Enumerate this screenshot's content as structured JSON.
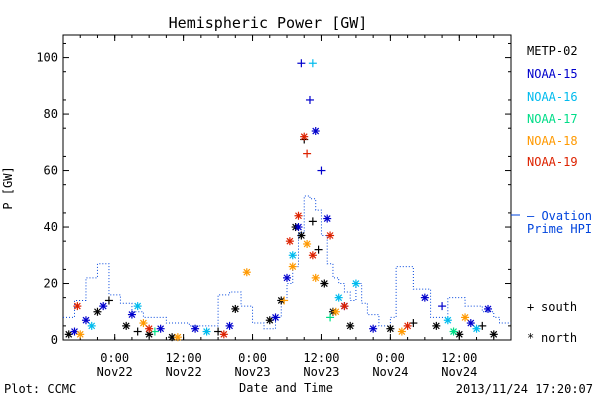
{
  "chart_data": {
    "type": "scatter",
    "title": "Hemispheric Power [GW]",
    "xlabel": "Date and Time",
    "ylabel": "P [GW]",
    "xlim": [
      "2013-11-21 15:00",
      "2013-11-24 21:00"
    ],
    "ylim": [
      0,
      108
    ],
    "y_ticks": [
      0,
      20,
      40,
      60,
      80,
      100
    ],
    "x_ticks": [
      {
        "x": "2013-11-22 00:00",
        "time": "0:00",
        "date": "Nov22"
      },
      {
        "x": "2013-11-22 12:00",
        "time": "12:00",
        "date": "Nov22"
      },
      {
        "x": "2013-11-23 00:00",
        "time": "0:00",
        "date": "Nov23"
      },
      {
        "x": "2013-11-23 12:00",
        "time": "12:00",
        "date": "Nov23"
      },
      {
        "x": "2013-11-24 00:00",
        "time": "0:00",
        "date": "Nov24"
      },
      {
        "x": "2013-11-24 12:00",
        "time": "12:00",
        "date": "Nov24"
      }
    ],
    "markers": {
      "south": "+",
      "north": "*"
    },
    "marker_legend": [
      {
        "symbol": "+",
        "label": "south"
      },
      {
        "symbol": "*",
        "label": "north"
      }
    ],
    "series": [
      {
        "name": "METP-02",
        "color": "#000000",
        "points": [
          {
            "x": "2013-11-21 16:00",
            "y": 2,
            "h": "north"
          },
          {
            "x": "2013-11-21 21:00",
            "y": 10,
            "h": "north"
          },
          {
            "x": "2013-11-21 23:00",
            "y": 14,
            "h": "south"
          },
          {
            "x": "2013-11-22 02:00",
            "y": 5,
            "h": "north"
          },
          {
            "x": "2013-11-22 04:00",
            "y": 3,
            "h": "south"
          },
          {
            "x": "2013-11-22 06:00",
            "y": 2,
            "h": "north"
          },
          {
            "x": "2013-11-22 10:00",
            "y": 1,
            "h": "north"
          },
          {
            "x": "2013-11-22 18:00",
            "y": 3,
            "h": "south"
          },
          {
            "x": "2013-11-22 21:00",
            "y": 11,
            "h": "north"
          },
          {
            "x": "2013-11-23 03:00",
            "y": 7,
            "h": "north"
          },
          {
            "x": "2013-11-23 05:00",
            "y": 14,
            "h": "north"
          },
          {
            "x": "2013-11-23 07:30",
            "y": 40,
            "h": "north"
          },
          {
            "x": "2013-11-23 08:30",
            "y": 37,
            "h": "north"
          },
          {
            "x": "2013-11-23 09:00",
            "y": 71,
            "h": "south"
          },
          {
            "x": "2013-11-23 10:30",
            "y": 42,
            "h": "south"
          },
          {
            "x": "2013-11-23 11:30",
            "y": 32,
            "h": "south"
          },
          {
            "x": "2013-11-23 12:30",
            "y": 20,
            "h": "north"
          },
          {
            "x": "2013-11-23 14:00",
            "y": 10,
            "h": "north"
          },
          {
            "x": "2013-11-23 17:00",
            "y": 5,
            "h": "north"
          },
          {
            "x": "2013-11-24 00:00",
            "y": 4,
            "h": "north"
          },
          {
            "x": "2013-11-24 04:00",
            "y": 6,
            "h": "south"
          },
          {
            "x": "2013-11-24 08:00",
            "y": 5,
            "h": "north"
          },
          {
            "x": "2013-11-24 12:00",
            "y": 2,
            "h": "north"
          },
          {
            "x": "2013-11-24 16:00",
            "y": 5,
            "h": "south"
          },
          {
            "x": "2013-11-24 18:00",
            "y": 2,
            "h": "north"
          }
        ]
      },
      {
        "name": "NOAA-15",
        "color": "#0000cc",
        "points": [
          {
            "x": "2013-11-21 17:00",
            "y": 3,
            "h": "north"
          },
          {
            "x": "2013-11-21 19:00",
            "y": 7,
            "h": "north"
          },
          {
            "x": "2013-11-21 22:00",
            "y": 12,
            "h": "north"
          },
          {
            "x": "2013-11-22 03:00",
            "y": 9,
            "h": "north"
          },
          {
            "x": "2013-11-22 08:00",
            "y": 4,
            "h": "north"
          },
          {
            "x": "2013-11-22 14:00",
            "y": 4,
            "h": "north"
          },
          {
            "x": "2013-11-22 20:00",
            "y": 5,
            "h": "north"
          },
          {
            "x": "2013-11-23 04:00",
            "y": 8,
            "h": "north"
          },
          {
            "x": "2013-11-23 06:00",
            "y": 22,
            "h": "north"
          },
          {
            "x": "2013-11-23 08:00",
            "y": 40,
            "h": "north"
          },
          {
            "x": "2013-11-23 08:30",
            "y": 98,
            "h": "south"
          },
          {
            "x": "2013-11-23 10:00",
            "y": 85,
            "h": "south"
          },
          {
            "x": "2013-11-23 11:00",
            "y": 74,
            "h": "north"
          },
          {
            "x": "2013-11-23 12:00",
            "y": 60,
            "h": "south"
          },
          {
            "x": "2013-11-23 13:00",
            "y": 43,
            "h": "north"
          },
          {
            "x": "2013-11-23 16:00",
            "y": 12,
            "h": "north"
          },
          {
            "x": "2013-11-23 21:00",
            "y": 4,
            "h": "north"
          },
          {
            "x": "2013-11-24 06:00",
            "y": 15,
            "h": "north"
          },
          {
            "x": "2013-11-24 09:00",
            "y": 12,
            "h": "south"
          },
          {
            "x": "2013-11-24 14:00",
            "y": 6,
            "h": "north"
          },
          {
            "x": "2013-11-24 17:00",
            "y": 11,
            "h": "north"
          }
        ]
      },
      {
        "name": "NOAA-16",
        "color": "#00bbee",
        "points": [
          {
            "x": "2013-11-21 20:00",
            "y": 5,
            "h": "north"
          },
          {
            "x": "2013-11-22 04:00",
            "y": 12,
            "h": "north"
          },
          {
            "x": "2013-11-22 16:00",
            "y": 3,
            "h": "north"
          },
          {
            "x": "2013-11-23 07:00",
            "y": 30,
            "h": "north"
          },
          {
            "x": "2013-11-23 10:30",
            "y": 98,
            "h": "south"
          },
          {
            "x": "2013-11-23 15:00",
            "y": 15,
            "h": "north"
          },
          {
            "x": "2013-11-23 18:00",
            "y": 20,
            "h": "north"
          },
          {
            "x": "2013-11-24 10:00",
            "y": 7,
            "h": "north"
          },
          {
            "x": "2013-11-24 15:00",
            "y": 4,
            "h": "north"
          }
        ]
      },
      {
        "name": "NOAA-17",
        "color": "#00dd88",
        "points": [
          {
            "x": "2013-11-22 07:00",
            "y": 3,
            "h": "south"
          },
          {
            "x": "2013-11-23 13:30",
            "y": 8,
            "h": "south"
          },
          {
            "x": "2013-11-24 11:00",
            "y": 3,
            "h": "north"
          }
        ]
      },
      {
        "name": "NOAA-18",
        "color": "#ff9900",
        "points": [
          {
            "x": "2013-11-21 18:00",
            "y": 2,
            "h": "north"
          },
          {
            "x": "2013-11-22 05:00",
            "y": 6,
            "h": "north"
          },
          {
            "x": "2013-11-22 11:00",
            "y": 1,
            "h": "north"
          },
          {
            "x": "2013-11-22 23:00",
            "y": 24,
            "h": "north"
          },
          {
            "x": "2013-11-23 05:30",
            "y": 14,
            "h": "south"
          },
          {
            "x": "2013-11-23 07:00",
            "y": 26,
            "h": "north"
          },
          {
            "x": "2013-11-23 09:30",
            "y": 34,
            "h": "north"
          },
          {
            "x": "2013-11-23 11:00",
            "y": 22,
            "h": "north"
          },
          {
            "x": "2013-11-23 14:30",
            "y": 10,
            "h": "north"
          },
          {
            "x": "2013-11-24 02:00",
            "y": 3,
            "h": "north"
          },
          {
            "x": "2013-11-24 13:00",
            "y": 8,
            "h": "north"
          }
        ]
      },
      {
        "name": "NOAA-19",
        "color": "#dd2200",
        "points": [
          {
            "x": "2013-11-21 17:30",
            "y": 12,
            "h": "north"
          },
          {
            "x": "2013-11-22 06:00",
            "y": 4,
            "h": "north"
          },
          {
            "x": "2013-11-22 19:00",
            "y": 2,
            "h": "north"
          },
          {
            "x": "2013-11-23 06:30",
            "y": 35,
            "h": "north"
          },
          {
            "x": "2013-11-23 08:00",
            "y": 44,
            "h": "north"
          },
          {
            "x": "2013-11-23 09:00",
            "y": 72,
            "h": "north"
          },
          {
            "x": "2013-11-23 09:30",
            "y": 66,
            "h": "south"
          },
          {
            "x": "2013-11-23 10:30",
            "y": 30,
            "h": "north"
          },
          {
            "x": "2013-11-23 13:30",
            "y": 37,
            "h": "north"
          },
          {
            "x": "2013-11-23 16:00",
            "y": 12,
            "h": "north"
          },
          {
            "x": "2013-11-24 03:00",
            "y": 5,
            "h": "north"
          }
        ]
      }
    ],
    "ovation": {
      "name": "Ovation Prime HPI",
      "style": "dotted step line",
      "color": "#0044dd",
      "x": [
        "2013-11-21 15:00",
        "2013-11-21 17:00",
        "2013-11-21 19:00",
        "2013-11-21 21:00",
        "2013-11-21 23:00",
        "2013-11-22 01:00",
        "2013-11-22 03:00",
        "2013-11-22 05:00",
        "2013-11-22 09:00",
        "2013-11-22 13:00",
        "2013-11-22 18:00",
        "2013-11-22 20:00",
        "2013-11-22 22:00",
        "2013-11-23 00:00",
        "2013-11-23 02:00",
        "2013-11-23 04:00",
        "2013-11-23 05:00",
        "2013-11-23 06:00",
        "2013-11-23 07:00",
        "2013-11-23 08:00",
        "2013-11-23 09:00",
        "2013-11-23 10:00",
        "2013-11-23 11:00",
        "2013-11-23 12:00",
        "2013-11-23 13:00",
        "2013-11-23 14:00",
        "2013-11-23 15:00",
        "2013-11-23 16:00",
        "2013-11-23 17:00",
        "2013-11-23 18:00",
        "2013-11-23 19:00",
        "2013-11-23 20:00",
        "2013-11-23 22:00",
        "2013-11-24 00:00",
        "2013-11-24 01:00",
        "2013-11-24 04:00",
        "2013-11-24 07:00",
        "2013-11-24 10:00",
        "2013-11-24 13:00",
        "2013-11-24 16:00",
        "2013-11-24 18:00",
        "2013-11-24 19:00"
      ],
      "y": [
        8,
        14,
        22,
        27,
        16,
        13,
        10,
        8,
        6,
        5,
        16,
        17,
        12,
        6,
        4,
        8,
        14,
        20,
        26,
        38,
        51,
        50,
        46,
        37,
        27,
        22,
        20,
        17,
        14,
        20,
        13,
        9,
        5,
        8,
        26,
        18,
        8,
        15,
        12,
        10,
        8,
        6
      ]
    }
  },
  "legend_entries": [
    "METP-02",
    "NOAA-15",
    "NOAA-16",
    "NOAA-17",
    "NOAA-18",
    "NOAA-19"
  ],
  "ovation_legend": {
    "line1": "— Ovation",
    "line2": "Prime HPI"
  },
  "footer": {
    "plot_label": "Plot: CCMC",
    "timestamp": "2013/11/24 17:20:07"
  }
}
